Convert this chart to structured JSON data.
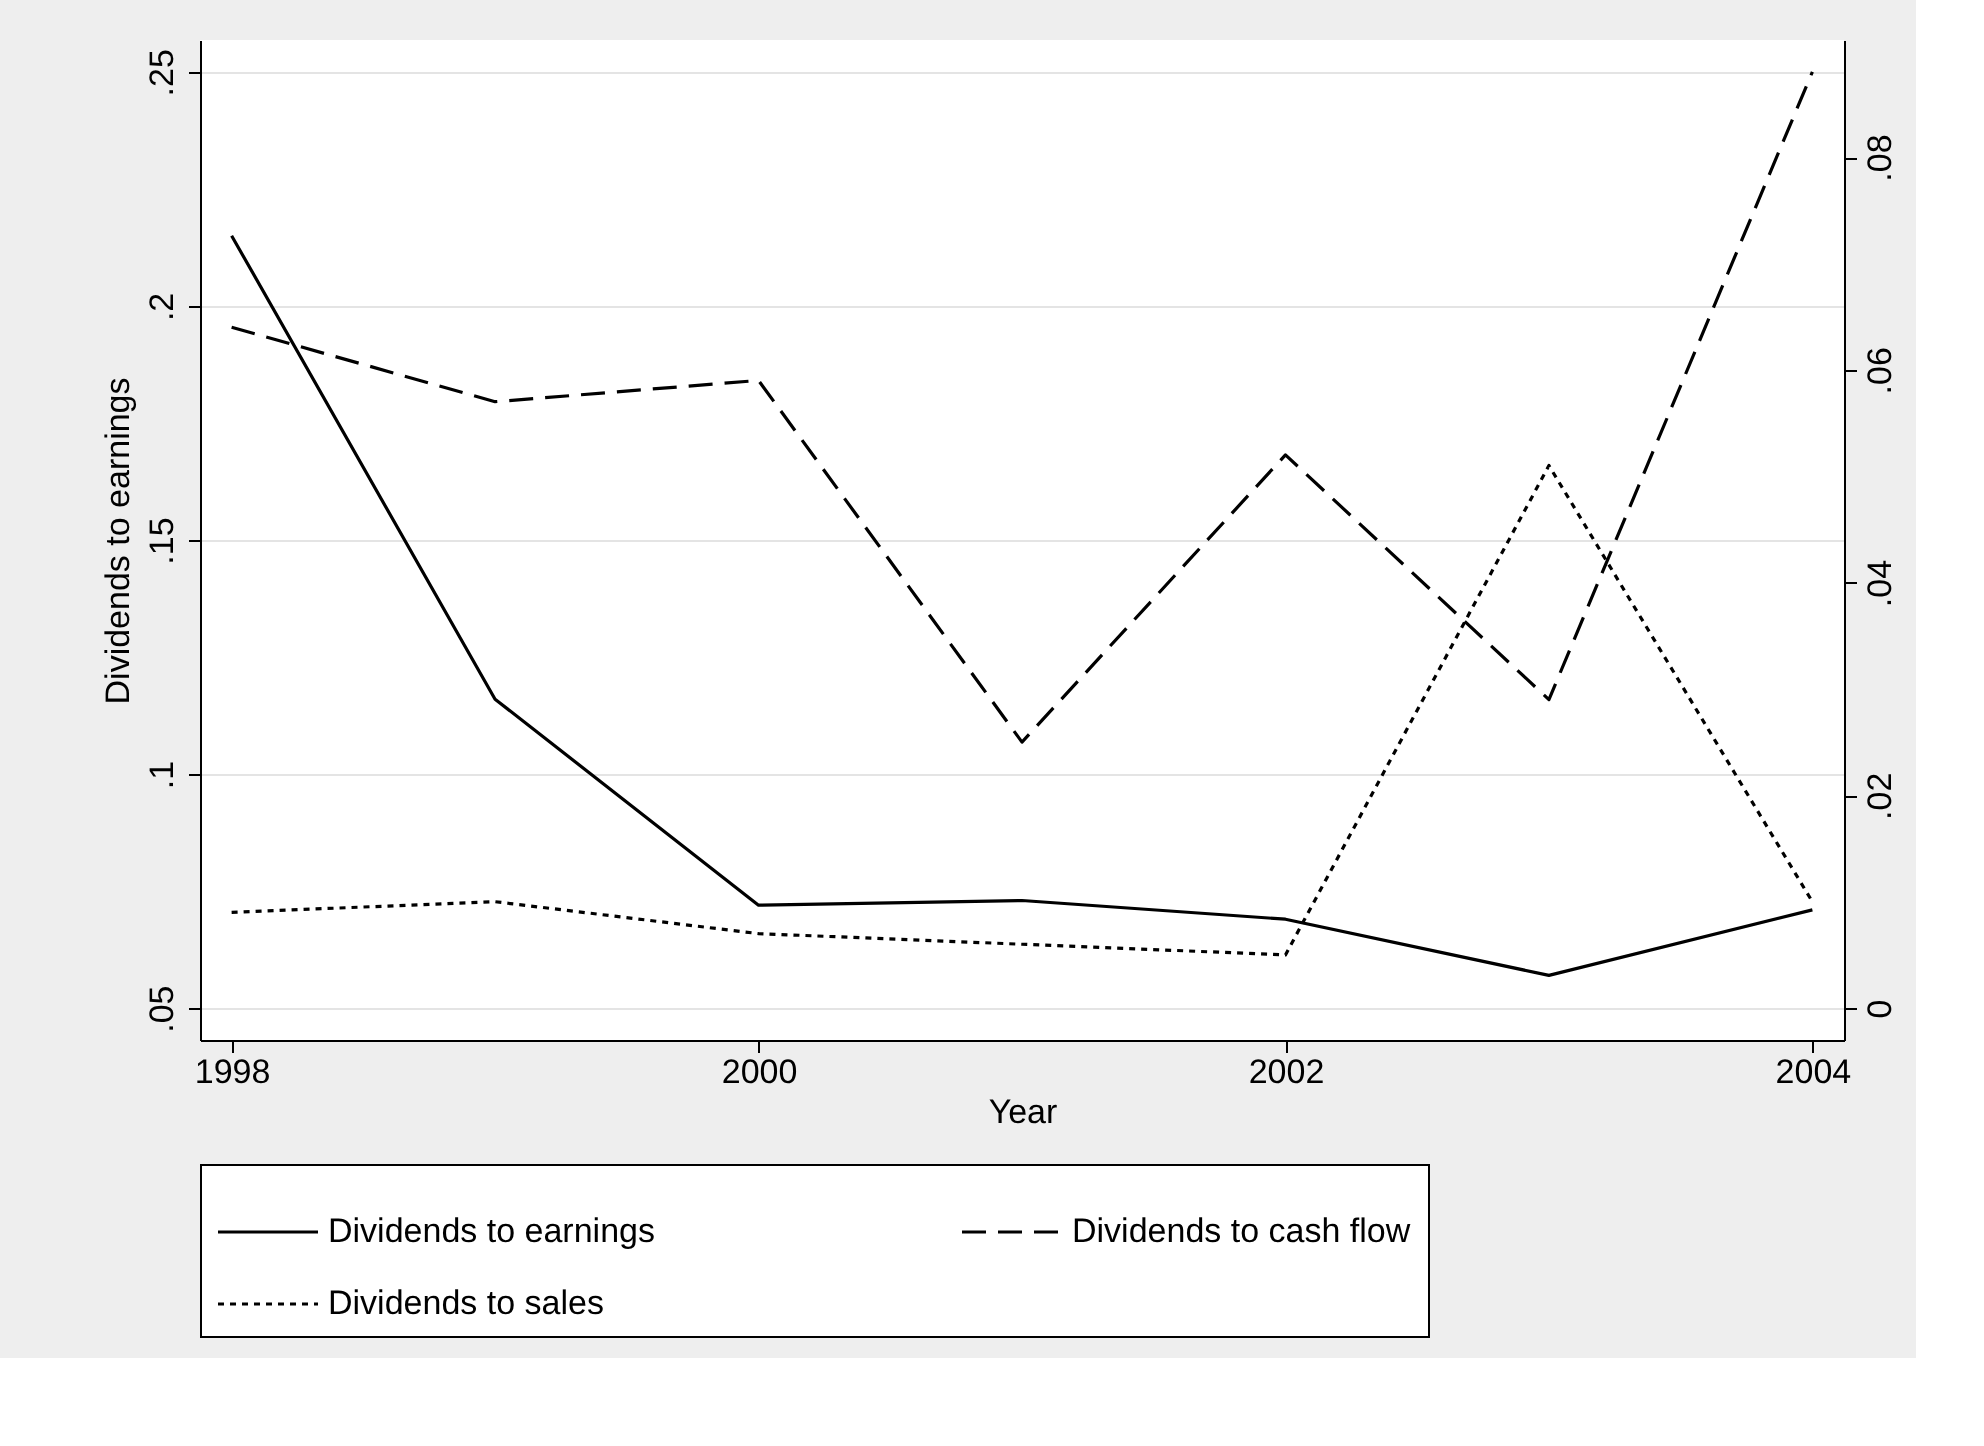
{
  "chart_data": {
    "type": "line",
    "xlabel": "Year",
    "ylabel": "Dividends to earnings",
    "x": [
      1998,
      1999,
      2000,
      2001,
      2002,
      2003,
      2004
    ],
    "series": [
      {
        "name": "Dividends to earnings",
        "color": "#000000",
        "line_style": "solid",
        "axis": "y",
        "values": [
          0.215,
          0.116,
          0.072,
          0.073,
          0.069,
          0.057,
          0.071
        ]
      },
      {
        "name": "Dividends to cash flow",
        "color": "#000000",
        "line_style": "dashed",
        "axis": "y2",
        "values": [
          0.064,
          0.057,
          0.059,
          0.025,
          0.052,
          0.029,
          0.088
        ]
      },
      {
        "name": "Dividends to sales",
        "color": "#000000",
        "line_style": "dotted",
        "axis": "y2",
        "values": [
          0.009,
          0.01,
          0.007,
          0.006,
          0.005,
          0.051,
          0.01
        ]
      }
    ],
    "xlim": [
      1997.88,
      2004.12
    ],
    "xticks": [
      1998,
      2000,
      2002,
      2004
    ],
    "ylim": [
      0.0432,
      0.2568
    ],
    "yticks": [
      {
        "value": 0.05,
        "label": ".05"
      },
      {
        "value": 0.1,
        "label": ".1"
      },
      {
        "value": 0.15,
        "label": ".15"
      },
      {
        "value": 0.2,
        "label": ".2"
      },
      {
        "value": 0.25,
        "label": ".25"
      }
    ],
    "y2lim": [
      -0.003,
      0.091
    ],
    "y2ticks": [
      0,
      {
        "value": 0.02,
        "label": ".02"
      },
      {
        "value": 0.04,
        "label": ".04"
      },
      {
        "value": 0.06,
        "label": ".06"
      },
      {
        "value": 0.08,
        "label": ".08"
      }
    ],
    "grid": "y",
    "legend": "bottom"
  }
}
